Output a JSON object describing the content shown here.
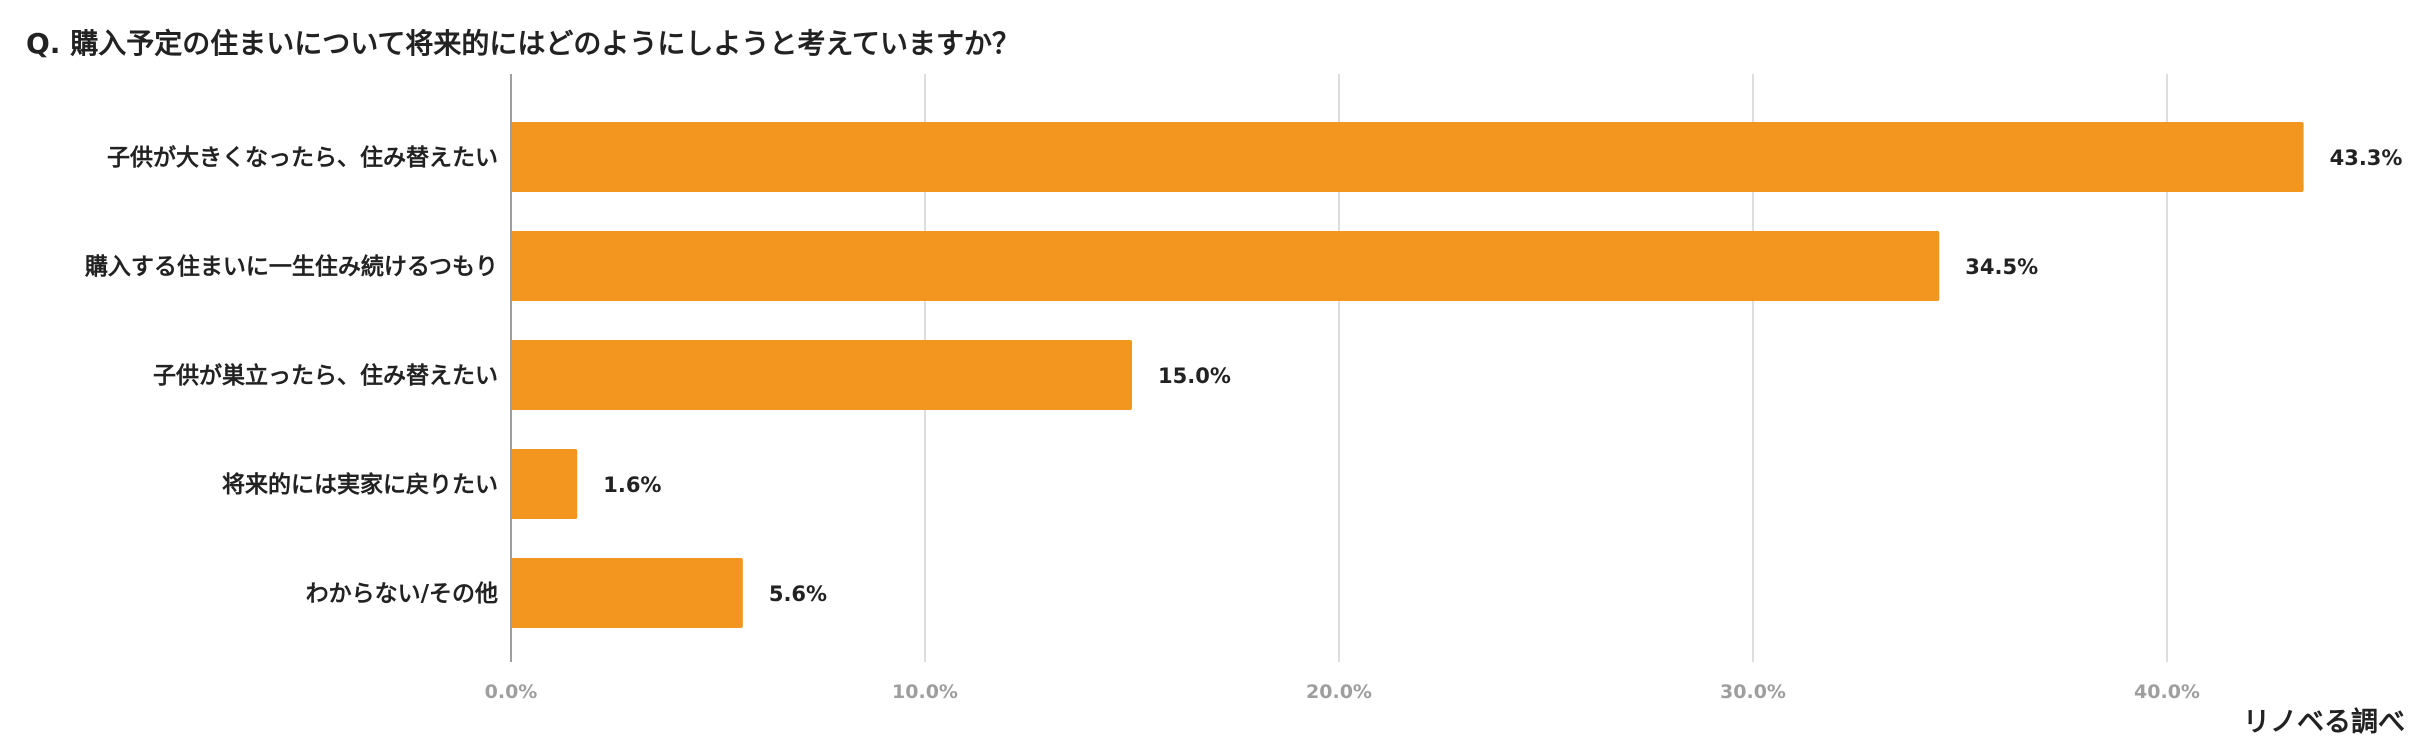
{
  "title": "Q. 購入予定の住まいについて将来的にはどのようにしようと考えていますか？",
  "source": "リノベる調べ",
  "colors": {
    "bar": "#F29620",
    "grid": "#dddddd",
    "axis": "#9e9e9e",
    "text": "#222222",
    "tick": "#9e9e9e"
  },
  "chart_data": {
    "type": "bar",
    "orientation": "horizontal",
    "categories": [
      "子供が大きくなったら、住み替えたい",
      "購入する住まいに一生住み続けるつもり",
      "子供が巣立ったら、住み替えたい",
      "将来的には実家に戻りたい",
      "わからない/その他"
    ],
    "values": [
      43.3,
      34.5,
      15.0,
      1.6,
      5.6
    ],
    "value_labels": [
      "43.3%",
      "34.5%",
      "15.0%",
      "1.6%",
      "5.6%"
    ],
    "xlim": [
      0,
      45
    ],
    "xticks": [
      0,
      10,
      20,
      30,
      40
    ],
    "xtick_labels": [
      "0.0%",
      "10.0%",
      "20.0%",
      "30.0%",
      "40.0%"
    ],
    "grid": true,
    "legend": "none"
  }
}
